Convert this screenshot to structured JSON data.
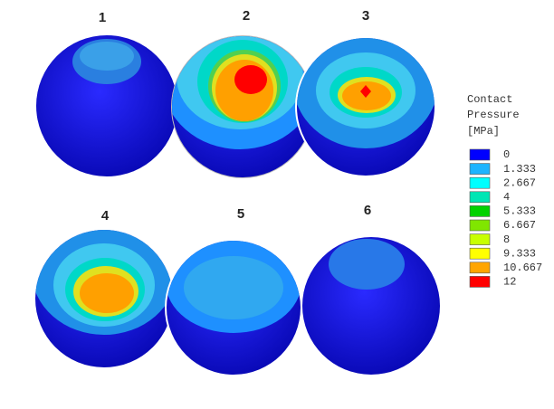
{
  "panels": [
    {
      "label": "1"
    },
    {
      "label": "2"
    },
    {
      "label": "3"
    },
    {
      "label": "4"
    },
    {
      "label": "5"
    },
    {
      "label": "6"
    }
  ],
  "legend": {
    "title_lines": [
      "Contact",
      "Pressure",
      "[MPa]"
    ],
    "levels": [
      {
        "label": "0",
        "color": "#0000ff"
      },
      {
        "label": "1.333",
        "color": "#1eb4ff"
      },
      {
        "label": "2.667",
        "color": "#00ffff"
      },
      {
        "label": "4",
        "color": "#00e6b4"
      },
      {
        "label": "5.333",
        "color": "#00d200"
      },
      {
        "label": "6.667",
        "color": "#80e600"
      },
      {
        "label": "8",
        "color": "#c8ff00"
      },
      {
        "label": "9.333",
        "color": "#ffff00"
      },
      {
        "label": "10.667",
        "color": "#ffa500"
      },
      {
        "label": "12",
        "color": "#ff0000"
      }
    ]
  }
}
